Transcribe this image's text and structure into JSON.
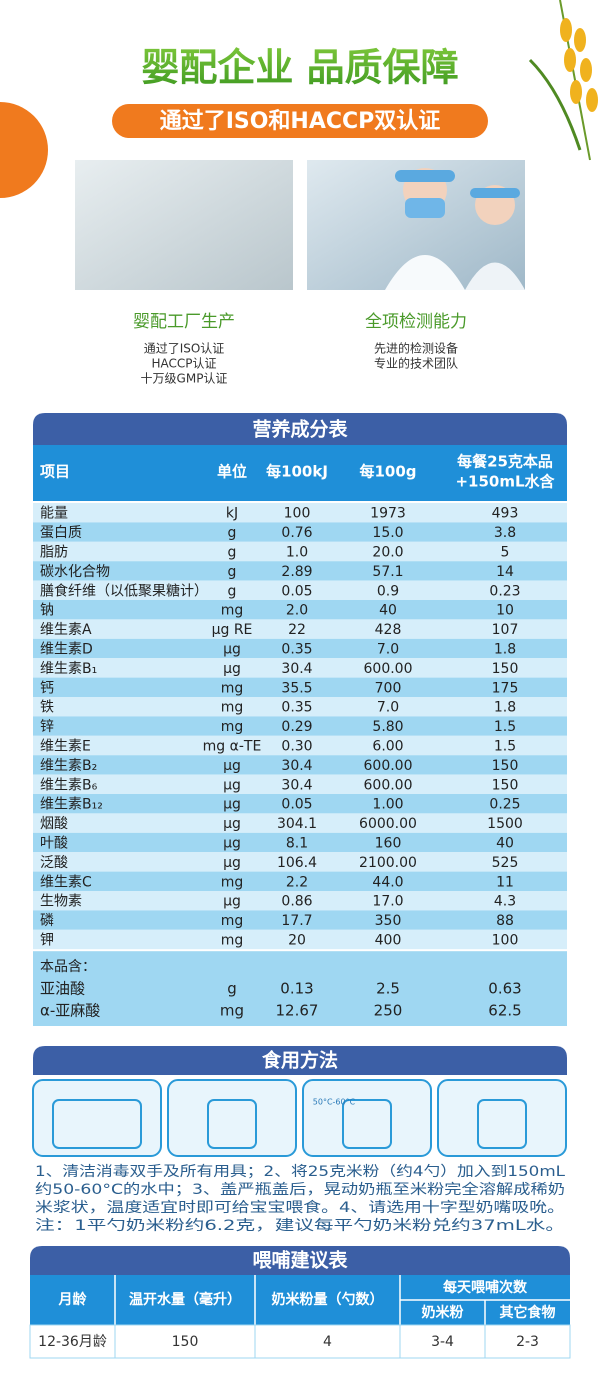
{
  "header": {
    "title": "婴配企业 品质保障",
    "subtitle": "通过了ISO和HACCP双认证"
  },
  "features": [
    {
      "label": "婴配工厂生产",
      "lines": [
        "通过了ISO认证",
        "HACCP认证",
        "十万级GMP认证"
      ]
    },
    {
      "label": "全项检测能力",
      "lines": [
        "先进的检测设备",
        "专业的技术团队"
      ]
    }
  ],
  "nutrition": {
    "title": "营养成分表",
    "columns": [
      "项目",
      "单位",
      "每100kJ",
      "每100g"
    ],
    "serving_column": [
      "每餐25克本品",
      "+150mL水含"
    ],
    "rows": [
      [
        "能量",
        "kJ",
        "100",
        "1973",
        "493"
      ],
      [
        "蛋白质",
        "g",
        "0.76",
        "15.0",
        "3.8"
      ],
      [
        "脂肪",
        "g",
        "1.0",
        "20.0",
        "5"
      ],
      [
        "碳水化合物",
        "g",
        "2.89",
        "57.1",
        "14"
      ],
      [
        "膳食纤维（以低聚果糖计）",
        "g",
        "0.05",
        "0.9",
        "0.23"
      ],
      [
        "钠",
        "mg",
        "2.0",
        "40",
        "10"
      ],
      [
        "维生素A",
        "μg RE",
        "22",
        "428",
        "107"
      ],
      [
        "维生素D",
        "μg",
        "0.35",
        "7.0",
        "1.8"
      ],
      [
        "维生素B₁",
        "μg",
        "30.4",
        "600.00",
        "150"
      ],
      [
        "钙",
        "mg",
        "35.5",
        "700",
        "175"
      ],
      [
        "铁",
        "mg",
        "0.35",
        "7.0",
        "1.8"
      ],
      [
        "锌",
        "mg",
        "0.29",
        "5.80",
        "1.5"
      ],
      [
        "维生素E",
        "mg α-TE",
        "0.30",
        "6.00",
        "1.5"
      ],
      [
        "维生素B₂",
        "μg",
        "30.4",
        "600.00",
        "150"
      ],
      [
        "维生素B₆",
        "μg",
        "30.4",
        "600.00",
        "150"
      ],
      [
        "维生素B₁₂",
        "μg",
        "0.05",
        "1.00",
        "0.25"
      ],
      [
        "烟酸",
        "μg",
        "304.1",
        "6000.00",
        "1500"
      ],
      [
        "叶酸",
        "μg",
        "8.1",
        "160",
        "40"
      ],
      [
        "泛酸",
        "μg",
        "106.4",
        "2100.00",
        "525"
      ],
      [
        "维生素C",
        "mg",
        "2.2",
        "44.0",
        "11"
      ],
      [
        "生物素",
        "μg",
        "0.86",
        "17.0",
        "4.3"
      ],
      [
        "磷",
        "mg",
        "17.7",
        "350",
        "88"
      ],
      [
        "钾",
        "mg",
        "20",
        "400",
        "100"
      ]
    ],
    "extra_label": "本品含：",
    "extra_rows": [
      [
        "亚油酸",
        "g",
        "0.13",
        "2.5",
        "0.63"
      ],
      [
        "α-亚麻酸",
        "mg",
        "12.67",
        "250",
        "62.5"
      ]
    ]
  },
  "usage": {
    "title": "食用方法",
    "temp_label": "50°C-60°C",
    "lines": [
      "1、清洁消毒双手及所有用具；2、将25克米粉（约4勺）加入到150mL",
      "约50-60°C的水中；3、盖严瓶盖后，晃动奶瓶至米粉完全溶解成稀奶",
      "米浆状，温度适宜时即可给宝宝喂食。4、请选用十字型奶嘴吸吮。",
      "注：1平勺奶米粉约6.2克，建议每平勺奶米粉兑约37mL水。"
    ]
  },
  "feeding": {
    "title": "喂哺建议表",
    "columns": [
      "月龄",
      "温开水量（毫升）",
      "奶米粉量（勺数）",
      "每天喂哺次数"
    ],
    "sub_columns": [
      "奶米粉",
      "其它食物"
    ],
    "rows": [
      [
        "12-36月龄",
        "150",
        "4",
        "3-4",
        "2-3"
      ]
    ]
  }
}
